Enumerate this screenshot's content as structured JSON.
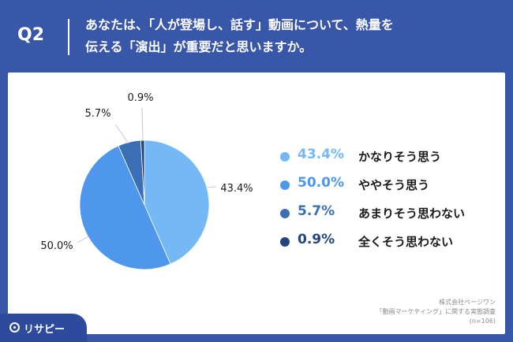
{
  "header": {
    "question_number": "Q2",
    "question_line1": "あなたは、「人が登場し、話す」動画について、熱量を",
    "question_line2": "伝える「演出」が重要だと思いますか。"
  },
  "chart_data": {
    "type": "pie",
    "slices": [
      {
        "label": "かなりそう思う",
        "value": 43.4,
        "display": "43.4%",
        "color": "#74b9f6"
      },
      {
        "label": "ややそう思う",
        "value": 50.0,
        "display": "50.0%",
        "color": "#4f97ec"
      },
      {
        "label": "あまりそう思わない",
        "value": 5.7,
        "display": "5.7%",
        "color": "#3b6fb5"
      },
      {
        "label": "全くそう思わない",
        "value": 0.9,
        "display": "0.9%",
        "color": "#23457d"
      }
    ],
    "legend_position": "right"
  },
  "source": {
    "line1": "株式会社ページワン",
    "line2": "「動画マーケティング」に関する実態調査",
    "line3": "(n=106)"
  },
  "logo": {
    "text": "リサピー",
    "icon": "risapi-logo-icon"
  }
}
